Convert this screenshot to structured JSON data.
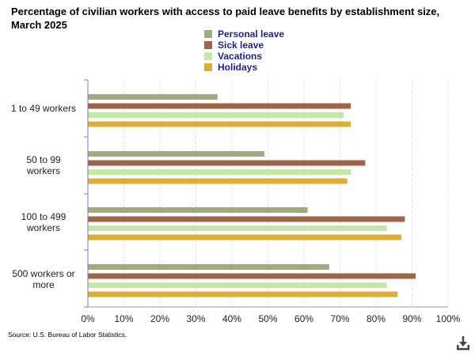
{
  "chart_data": {
    "type": "bar",
    "orientation": "horizontal",
    "title": "Percentage of civilian workers with access to paid leave benefits by establishment size, March 2025",
    "categories": [
      [
        "1 to 49 workers"
      ],
      [
        "50 to 99",
        "workers"
      ],
      [
        "100 to 499",
        "workers"
      ],
      [
        "500 workers or",
        "more"
      ]
    ],
    "series": [
      {
        "name": "Personal leave",
        "color": "#a3a87f",
        "values": [
          36,
          49,
          61,
          67
        ]
      },
      {
        "name": "Sick leave",
        "color": "#a0644a",
        "values": [
          73,
          77,
          88,
          91
        ]
      },
      {
        "name": "Vacations",
        "color": "#c4e8a8",
        "values": [
          71,
          73,
          83,
          83
        ]
      },
      {
        "name": "Holidays",
        "color": "#dcae35",
        "values": [
          73,
          72,
          87,
          86
        ]
      }
    ],
    "xlim": [
      0,
      100
    ],
    "xticks": [
      "0%",
      "10%",
      "20%",
      "30%",
      "40%",
      "50%",
      "60%",
      "70%",
      "80%",
      "90%",
      "100%"
    ],
    "grid": true,
    "legend_position": "top-center"
  },
  "source": "Source: U.S. Bureau of Labor Statistics.",
  "icons": {
    "download": "download-icon"
  }
}
